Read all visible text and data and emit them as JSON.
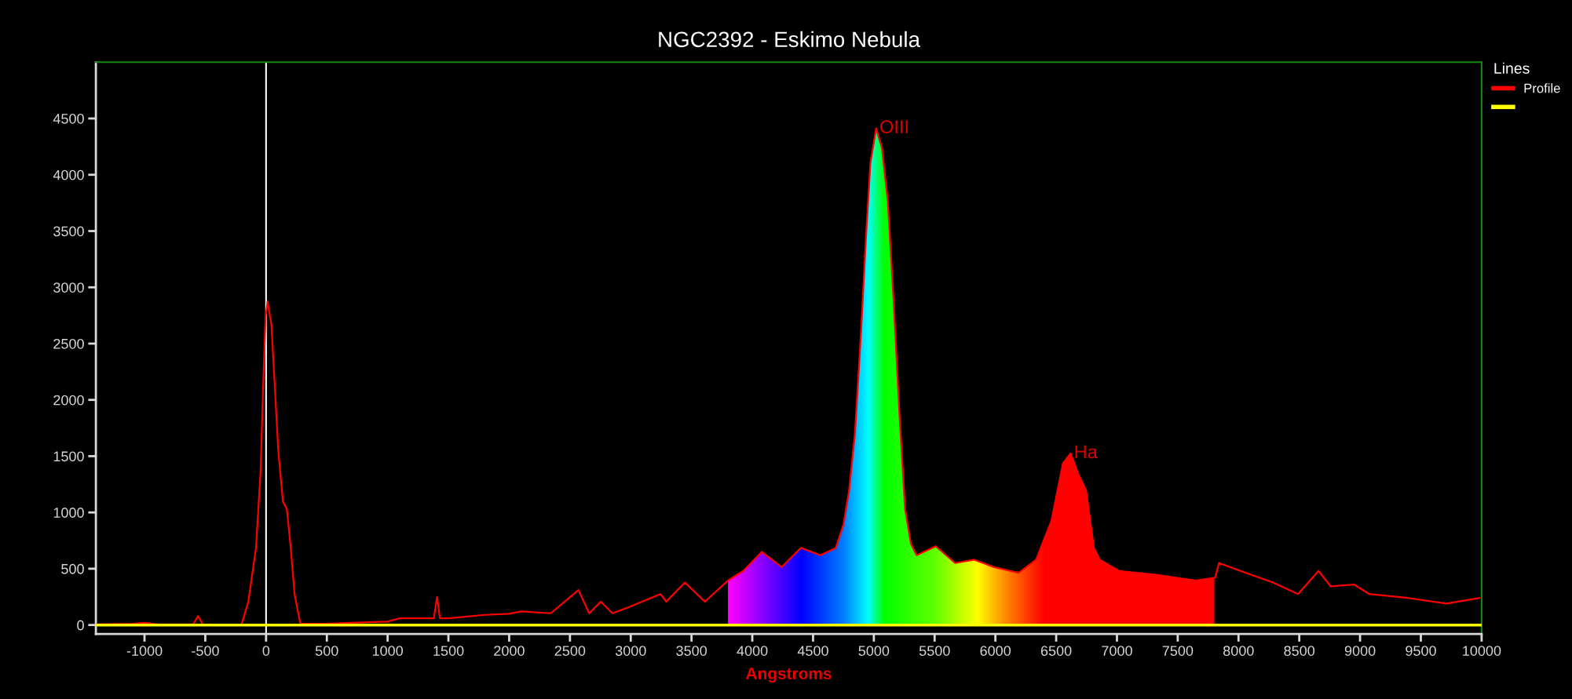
{
  "chart_data": {
    "type": "line",
    "title": "NGC2392 - Eskimo Nebula",
    "xlabel": "Angstroms",
    "legend_title": "Lines",
    "legend": "top right",
    "grid": false,
    "marker": "none",
    "line_style": "solid",
    "xlim": [
      -1400,
      10000
    ],
    "xticks": [
      -1000,
      -500,
      0,
      500,
      1000,
      1500,
      2000,
      2500,
      3000,
      3500,
      4000,
      4500,
      5000,
      5500,
      6000,
      6500,
      7000,
      7500,
      8000,
      8500,
      9000,
      9500,
      10000
    ],
    "ylim": [
      -80,
      5000
    ],
    "yticks": [
      0,
      500,
      1000,
      1500,
      2000,
      2500,
      3000,
      3500,
      4000,
      4500
    ],
    "series": [
      {
        "name": "Profile",
        "color": "#ff0000",
        "x": [
          -1400,
          -1100,
          -1000,
          -900,
          -600,
          -560,
          -520,
          -300,
          -203,
          -146,
          -83,
          -45,
          -26,
          -4,
          12,
          44,
          75,
          101,
          139,
          171,
          203,
          234,
          282,
          500,
          700,
          1000,
          1100,
          1380,
          1407,
          1430,
          1500,
          1800,
          2000,
          2100,
          2342,
          2570,
          2658,
          2754,
          2849,
          2975,
          3245,
          3292,
          3445,
          3610,
          3800,
          3926,
          4078,
          4243,
          4400,
          4560,
          4687,
          4750,
          4797,
          4845,
          4893,
          4934,
          4972,
          5019,
          5067,
          5115,
          5161,
          5210,
          5257,
          5305,
          5352,
          5510,
          5669,
          5826,
          5986,
          6192,
          6335,
          6461,
          6556,
          6619,
          6683,
          6746,
          6810,
          6858,
          7017,
          7334,
          7650,
          7808,
          7840,
          8061,
          8283,
          8490,
          8658,
          8759,
          8950,
          9076,
          9394,
          9710,
          9980
        ],
        "values": [
          5,
          10,
          20,
          5,
          5,
          80,
          5,
          0,
          0,
          207,
          685,
          1370,
          2053,
          2736,
          2874,
          2668,
          2053,
          1540,
          1095,
          1030,
          685,
          275,
          10,
          10,
          20,
          30,
          60,
          60,
          250,
          60,
          60,
          90,
          100,
          120,
          104,
          310,
          104,
          207,
          104,
          155,
          275,
          207,
          378,
          207,
          395,
          480,
          650,
          515,
          685,
          620,
          685,
          890,
          1200,
          1710,
          2570,
          3420,
          4106,
          4412,
          4240,
          3761,
          2909,
          1882,
          1030,
          720,
          620,
          700,
          550,
          580,
          515,
          463,
          580,
          925,
          1437,
          1524,
          1336,
          1197,
          685,
          580,
          480,
          445,
          395,
          420,
          550,
          463,
          378,
          275,
          480,
          343,
          360,
          275,
          240,
          190,
          240
        ]
      },
      {
        "color": "#ffff00",
        "x": [
          -1400,
          10000
        ],
        "values": [
          0,
          0
        ]
      }
    ],
    "ref_lines": [
      {
        "axis": "x",
        "value": 0,
        "color": "#ffffff"
      }
    ],
    "bands": [
      {
        "axis": "x",
        "from": 3800,
        "to": 7800
      }
    ],
    "annotations": [
      {
        "text": "OIII",
        "x": 5019,
        "y": 4412
      },
      {
        "text": "Ha",
        "x": 6619,
        "y": 1524
      }
    ]
  }
}
